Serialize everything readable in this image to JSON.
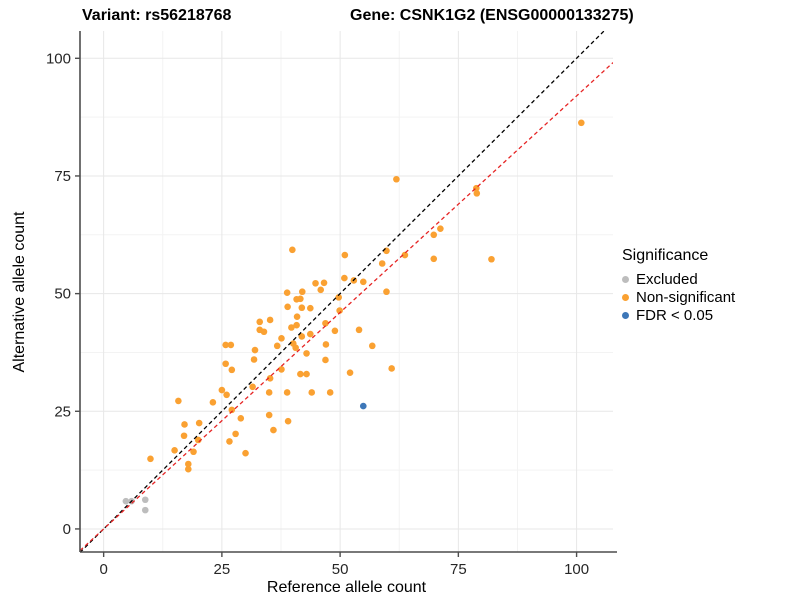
{
  "titles": {
    "variant": "Variant: rs56218768",
    "gene": "Gene: CSNK1G2 (ENSG00000133275)"
  },
  "legend": {
    "title": "Significance"
  },
  "chart_data": {
    "type": "scatter",
    "xlabel": "Reference allele count",
    "ylabel": "Alternative allele count",
    "xlim": [
      -5,
      107.7
    ],
    "ylim": [
      -4.9,
      105.8
    ],
    "x_ticks": [
      0,
      25,
      50,
      75,
      100
    ],
    "y_ticks": [
      0,
      25,
      50,
      75,
      100
    ],
    "minor_ticks": [
      12.5,
      37.5,
      62.5,
      87.5
    ],
    "grid": true,
    "legend_position": "right",
    "colors": {
      "major_grid": "#e7e7e7",
      "minor_grid": "#f3f3f3",
      "axis_line": "#4d4d4d",
      "tick_text": "#262626"
    },
    "series": [
      {
        "name": "Excluded",
        "color": "#BDBDBD",
        "points": [
          [
            4.7,
            5.9
          ],
          [
            5.9,
            5.9
          ],
          [
            8.8,
            6.2
          ],
          [
            8.8,
            4.0
          ]
        ]
      },
      {
        "name": "Non-significant",
        "color": "#FAA132",
        "points": [
          [
            15.8,
            27.2
          ],
          [
            23.1,
            26.9
          ],
          [
            25.0,
            29.5
          ],
          [
            26.0,
            28.5
          ],
          [
            27.1,
            25.3
          ],
          [
            29.0,
            23.5
          ],
          [
            17.1,
            22.2
          ],
          [
            20.2,
            22.5
          ],
          [
            27.9,
            20.2
          ],
          [
            26.6,
            18.6
          ],
          [
            17.0,
            19.8
          ],
          [
            20.0,
            18.9
          ],
          [
            15.0,
            16.7
          ],
          [
            30.0,
            16.1
          ],
          [
            9.9,
            14.9
          ],
          [
            19.0,
            16.4
          ],
          [
            17.9,
            13.8
          ],
          [
            17.9,
            12.7
          ],
          [
            33.0,
            44.0
          ],
          [
            33.0,
            42.3
          ],
          [
            25.8,
            39.1
          ],
          [
            26.9,
            39.1
          ],
          [
            32.0,
            38.0
          ],
          [
            31.8,
            36.0
          ],
          [
            25.8,
            35.1
          ],
          [
            27.1,
            33.8
          ],
          [
            31.5,
            30.2
          ],
          [
            35.0,
            29.0
          ],
          [
            38.8,
            29.0
          ],
          [
            44.0,
            29.0
          ],
          [
            47.9,
            29.0
          ],
          [
            35.0,
            24.2
          ],
          [
            39.0,
            22.9
          ],
          [
            35.9,
            21.0
          ],
          [
            39.9,
            59.3
          ],
          [
            51.0,
            58.2
          ],
          [
            59.8,
            59.1
          ],
          [
            63.7,
            58.2
          ],
          [
            69.8,
            62.5
          ],
          [
            69.8,
            57.4
          ],
          [
            71.2,
            63.8
          ],
          [
            58.9,
            56.4
          ],
          [
            50.9,
            53.3
          ],
          [
            52.9,
            52.8
          ],
          [
            54.9,
            52.5
          ],
          [
            44.8,
            52.2
          ],
          [
            46.6,
            52.3
          ],
          [
            45.9,
            50.8
          ],
          [
            42.0,
            50.4
          ],
          [
            38.8,
            50.2
          ],
          [
            59.8,
            50.4
          ],
          [
            40.8,
            48.8
          ],
          [
            41.6,
            48.9
          ],
          [
            38.9,
            47.2
          ],
          [
            41.9,
            47.0
          ],
          [
            43.7,
            46.9
          ],
          [
            49.7,
            49.2
          ],
          [
            49.9,
            46.4
          ],
          [
            35.2,
            44.4
          ],
          [
            40.9,
            45.1
          ],
          [
            40.8,
            43.3
          ],
          [
            39.7,
            42.8
          ],
          [
            33.9,
            41.9
          ],
          [
            43.7,
            41.4
          ],
          [
            37.6,
            40.5
          ],
          [
            40.1,
            39.4
          ],
          [
            40.6,
            38.5
          ],
          [
            41.9,
            40.9
          ],
          [
            46.9,
            43.7
          ],
          [
            48.9,
            42.1
          ],
          [
            54.0,
            42.3
          ],
          [
            36.7,
            38.9
          ],
          [
            42.9,
            37.3
          ],
          [
            47.0,
            39.2
          ],
          [
            56.8,
            38.9
          ],
          [
            37.6,
            33.9
          ],
          [
            41.6,
            32.9
          ],
          [
            42.9,
            32.9
          ],
          [
            46.9,
            35.9
          ],
          [
            52.1,
            33.2
          ],
          [
            35.2,
            32.0
          ],
          [
            60.9,
            34.1
          ],
          [
            82.0,
            57.3
          ],
          [
            61.9,
            74.3
          ],
          [
            101.0,
            86.3
          ],
          [
            78.8,
            72.4
          ],
          [
            78.9,
            71.3
          ]
        ]
      },
      {
        "name": "FDR < 0.05",
        "color": "#3D77B8",
        "points": [
          [
            54.9,
            26.1
          ]
        ]
      }
    ],
    "lines": [
      {
        "name": "identity",
        "slope": 1.0,
        "intercept": 0,
        "color": "#000000",
        "style": "dashed"
      },
      {
        "name": "fit",
        "slope": 0.92,
        "intercept": 0,
        "color": "#E62424",
        "style": "dashed"
      }
    ]
  }
}
